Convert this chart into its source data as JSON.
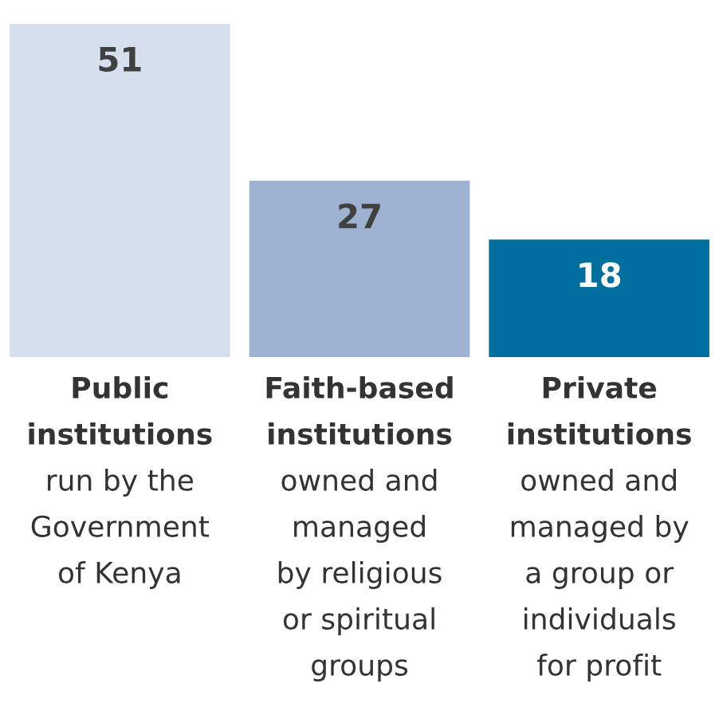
{
  "chart_data": {
    "type": "bar",
    "categories": [
      "Public\ninstitutions\nrun by the\nGovernment\nof Kenya",
      "Faith-based\ninstitutions\nowned and\nmanaged\nby religious\nor spiritual\ngroups",
      "Private\ninstitutions\nowned and\nmanaged by\na group or\nindividuals\nfor profit"
    ],
    "values": [
      51,
      27,
      18
    ],
    "colors": [
      "#d6dfed",
      "#9cb2d0",
      "#006f9e"
    ],
    "data_labels": true
  }
}
